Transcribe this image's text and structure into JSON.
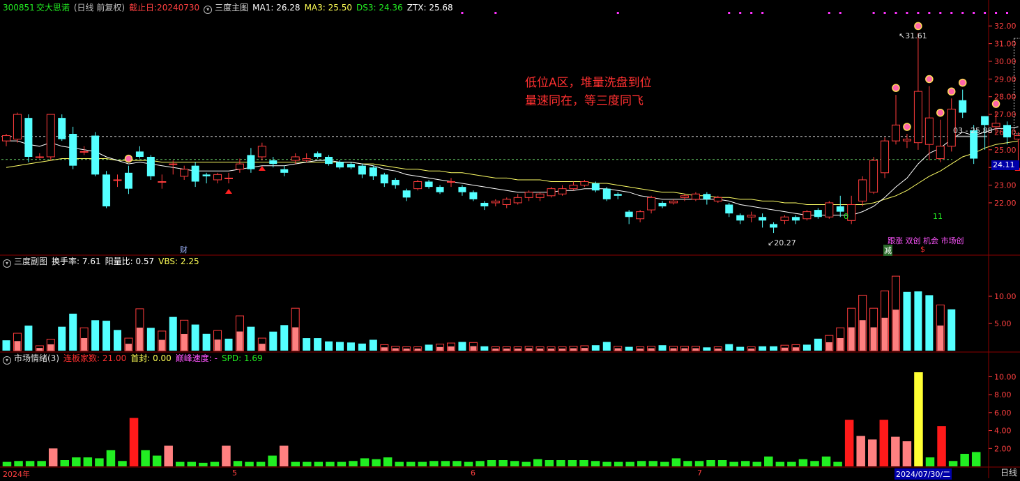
{
  "header": {
    "code": "300851",
    "name": "交大思诺",
    "period": "(日线 前复权)",
    "cutoff": "截止日:20240730",
    "main_title": "三度主图",
    "ma1": "MA1: 26.28",
    "ma3": "MA3: 25.50",
    "ds3": "DS3: 24.36",
    "ztx": "ZTX: 25.68"
  },
  "sub1": {
    "title": "三度副图",
    "turnover": "换手率: 7.61",
    "yang_ratio": "阳量比: 0.57",
    "vbs": "VBS: 2.25"
  },
  "sub2": {
    "title": "市场情绪(3)",
    "limit_count": "连板家数: 21.00",
    "first_seal": "首封: 0.00",
    "peak_speed": "巅峰速度: -",
    "spd": "SPD: 1.69"
  },
  "annotation": {
    "line1": "低位A区，堆量洗盘到位",
    "line2": "量速同在，等三度同飞"
  },
  "labels": {
    "high_marker": "31.61",
    "low_marker": "20.27",
    "last_price_tag": "24.11",
    "right_marker": "03 - 25.88",
    "cai": "财",
    "zero": "0",
    "eleven": "11",
    "tags": "跟涨 双创 机会 市场创",
    "jian": "减",
    "dollar": "$",
    "period_name": "日线"
  },
  "x_axis": {
    "labels": [
      "2024年",
      "5",
      "6",
      "7"
    ],
    "current": "2024/07/30/二"
  },
  "colors": {
    "up": "#ff3c3c",
    "down": "#54ffff",
    "ma1": "#ffffff",
    "ma3": "#ffff66",
    "grid": "#8b0000",
    "sentiment_green": "#22ee22",
    "sentiment_red": "#ff1a1a",
    "sentiment_pink": "#ff8080",
    "sentiment_yellow": "#ffff33"
  },
  "chart_data": [
    {
      "type": "candlestick",
      "title": "三度主图",
      "ylim": [
        19.2,
        32.6
      ],
      "y_ticks": [
        22.0,
        23.0,
        24.0,
        25.0,
        26.0,
        27.0,
        28.0,
        29.0,
        30.0,
        31.0,
        32.0
      ],
      "open": [
        25.5,
        25.6,
        26.8,
        24.6,
        24.6,
        26.8,
        25.9,
        24.9,
        25.8,
        23.6,
        23.3,
        23.7,
        24.9,
        24.6,
        23.2,
        24.2,
        23.5,
        24.1,
        23.6,
        23.3,
        23.4,
        23.9,
        24.7,
        24.6,
        24.4,
        23.9,
        24.4,
        24.4,
        24.8,
        24.6,
        24.3,
        24.2,
        24.1,
        24.0,
        23.6,
        23.3,
        22.7,
        22.8,
        23.2,
        22.9,
        23.2,
        22.9,
        22.6,
        22.0,
        22.0,
        21.9,
        22.0,
        22.3,
        22.3,
        22.4,
        22.5,
        22.8,
        23.0,
        23.1,
        22.8,
        22.5,
        21.5,
        21.1,
        21.6,
        22.0,
        22.0,
        22.3,
        22.2,
        22.5,
        22.1,
        21.9,
        21.3,
        21.2,
        21.2,
        20.8,
        21.0,
        21.2,
        21.1,
        21.6,
        21.2,
        21.8,
        21.0,
        22.1,
        22.6,
        23.7,
        25.5,
        25.5,
        25.4,
        25.3,
        24.5,
        25.2,
        27.8,
        26.1,
        26.9,
        26.3,
        26.4,
        25.6
      ],
      "close": [
        25.8,
        27.0,
        24.6,
        24.6,
        27.0,
        25.6,
        24.1,
        24.9,
        23.6,
        21.8,
        23.3,
        22.8,
        24.6,
        23.5,
        23.2,
        24.2,
        23.9,
        23.2,
        23.5,
        23.6,
        23.4,
        24.2,
        23.9,
        25.2,
        24.2,
        23.7,
        24.6,
        24.5,
        24.6,
        24.2,
        24.0,
        24.0,
        23.6,
        23.5,
        23.1,
        23.0,
        22.3,
        23.2,
        22.9,
        22.6,
        23.2,
        22.6,
        22.2,
        21.8,
        22.1,
        22.2,
        22.3,
        22.6,
        22.5,
        22.8,
        22.8,
        23.0,
        23.2,
        22.7,
        22.2,
        22.4,
        21.2,
        21.5,
        22.3,
        21.8,
        22.1,
        22.4,
        22.5,
        22.2,
        22.3,
        21.4,
        21.0,
        21.3,
        21.0,
        20.6,
        21.2,
        21.0,
        21.5,
        21.2,
        22.0,
        21.5,
        21.9,
        23.3,
        24.4,
        25.5,
        26.4,
        25.6,
        28.3,
        26.8,
        25.2,
        27.3,
        27.1,
        24.5,
        26.4,
        26.5,
        25.7,
        25.8
      ],
      "high": [
        25.9,
        27.1,
        27.0,
        24.8,
        27.0,
        27.0,
        26.3,
        25.2,
        26.0,
        23.8,
        23.6,
        24.1,
        25.2,
        24.7,
        23.6,
        24.4,
        24.1,
        24.3,
        23.7,
        23.7,
        23.7,
        24.5,
        25.1,
        25.4,
        24.6,
        24.1,
        24.8,
        24.8,
        24.9,
        24.7,
        24.4,
        24.3,
        24.2,
        24.1,
        23.7,
        23.4,
        22.8,
        23.3,
        23.3,
        23.0,
        23.4,
        23.0,
        22.7,
        22.1,
        22.2,
        22.3,
        22.5,
        22.7,
        22.6,
        22.9,
        23.0,
        23.2,
        23.3,
        23.2,
        22.9,
        22.6,
        21.6,
        21.6,
        22.4,
        22.1,
        22.2,
        22.5,
        22.6,
        22.6,
        22.4,
        22.0,
        21.4,
        21.5,
        21.4,
        20.9,
        21.3,
        21.3,
        21.6,
        21.7,
        22.1,
        22.4,
        22.4,
        23.5,
        24.6,
        25.7,
        28.1,
        25.9,
        31.6,
        28.6,
        26.7,
        27.9,
        28.4,
        26.4,
        26.9,
        27.2,
        26.6,
        26.0
      ],
      "low": [
        25.2,
        25.4,
        24.3,
        24.5,
        24.4,
        25.5,
        23.9,
        24.7,
        23.5,
        21.7,
        22.9,
        22.5,
        24.5,
        23.3,
        22.8,
        23.6,
        23.3,
        22.9,
        23.1,
        23.1,
        23.1,
        23.7,
        23.7,
        24.4,
        24.0,
        23.5,
        24.2,
        24.3,
        24.5,
        24.1,
        23.9,
        23.9,
        23.4,
        23.3,
        22.9,
        22.8,
        22.1,
        22.7,
        22.8,
        22.5,
        22.9,
        22.4,
        22.1,
        21.6,
        21.8,
        21.7,
        21.9,
        22.1,
        22.1,
        22.3,
        22.4,
        22.7,
        22.9,
        22.6,
        22.1,
        22.2,
        20.8,
        20.9,
        21.4,
        21.7,
        21.9,
        22.1,
        22.1,
        21.9,
        22.0,
        21.2,
        20.8,
        20.9,
        20.6,
        20.3,
        20.8,
        20.8,
        21.0,
        21.1,
        21.1,
        21.2,
        20.8,
        21.8,
        22.5,
        23.4,
        25.3,
        25.1,
        25.0,
        24.4,
        24.3,
        24.9,
        26.8,
        24.2,
        25.0,
        25.9,
        25.3,
        24.4
      ],
      "ma1": [
        25.5,
        25.5,
        25.3,
        25.2,
        25.4,
        25.2,
        25.1,
        25.0,
        24.9,
        24.6,
        24.4,
        24.2,
        24.3,
        24.2,
        24.1,
        24.0,
        23.9,
        23.8,
        23.8,
        23.8,
        23.8,
        23.9,
        24.0,
        24.1,
        24.1,
        24.1,
        24.2,
        24.3,
        24.4,
        24.4,
        24.3,
        24.3,
        24.2,
        24.1,
        23.9,
        23.8,
        23.6,
        23.5,
        23.4,
        23.3,
        23.2,
        23.1,
        23.0,
        22.9,
        22.8,
        22.7,
        22.6,
        22.6,
        22.6,
        22.6,
        22.7,
        22.7,
        22.8,
        22.8,
        22.8,
        22.7,
        22.6,
        22.4,
        22.3,
        22.2,
        22.2,
        22.2,
        22.2,
        22.2,
        22.2,
        22.1,
        21.9,
        21.8,
        21.7,
        21.6,
        21.5,
        21.4,
        21.3,
        21.3,
        21.3,
        21.3,
        21.3,
        21.5,
        21.8,
        22.3,
        22.9,
        23.4,
        24.2,
        24.8,
        25.1,
        25.6,
        26.0,
        25.8,
        26.0,
        26.2,
        26.2,
        26.3
      ],
      "ma3": [
        24.0,
        24.1,
        24.2,
        24.3,
        24.4,
        24.5,
        24.5,
        24.5,
        24.5,
        24.5,
        24.4,
        24.4,
        24.4,
        24.4,
        24.3,
        24.3,
        24.3,
        24.3,
        24.3,
        24.3,
        24.3,
        24.3,
        24.3,
        24.3,
        24.3,
        24.3,
        24.3,
        24.3,
        24.3,
        24.3,
        24.3,
        24.3,
        24.2,
        24.2,
        24.1,
        24.0,
        23.9,
        23.9,
        23.8,
        23.8,
        23.7,
        23.7,
        23.6,
        23.5,
        23.4,
        23.4,
        23.3,
        23.3,
        23.3,
        23.2,
        23.2,
        23.2,
        23.2,
        23.1,
        23.1,
        23.0,
        22.9,
        22.8,
        22.7,
        22.6,
        22.6,
        22.5,
        22.4,
        22.4,
        22.3,
        22.3,
        22.2,
        22.2,
        22.1,
        22.1,
        22.0,
        22.0,
        21.9,
        21.9,
        21.9,
        21.9,
        21.9,
        21.9,
        22.0,
        22.2,
        22.4,
        22.7,
        23.1,
        23.5,
        23.8,
        24.2,
        24.6,
        24.8,
        25.1,
        25.3,
        25.4,
        25.5
      ],
      "ref_lines": [
        25.75,
        24.45
      ],
      "flower_markers_index": [
        11,
        80,
        81,
        82,
        83,
        84,
        85,
        86,
        89
      ],
      "triangle_markers_index": [
        20,
        23,
        91
      ]
    },
    {
      "type": "bar",
      "title": "三度副图",
      "ylim": [
        0,
        15
      ],
      "y_ticks": [
        5.0,
        10.0
      ],
      "values": [
        1.9,
        3.2,
        4.6,
        0.9,
        2.1,
        4.4,
        6.8,
        4.2,
        5.6,
        5.5,
        3.8,
        2.3,
        7.7,
        4.2,
        3.6,
        6.2,
        5.6,
        4.8,
        3.1,
        3.7,
        2.2,
        6.4,
        4.4,
        2.3,
        3.5,
        4.7,
        7.8,
        2.3,
        2.3,
        1.7,
        1.6,
        1.5,
        1.3,
        2.0,
        1.1,
        0.8,
        0.7,
        0.7,
        1.1,
        1.2,
        1.4,
        1.6,
        1.5,
        0.8,
        0.7,
        0.7,
        0.7,
        0.8,
        0.7,
        0.7,
        0.7,
        0.8,
        0.9,
        1.0,
        1.6,
        0.8,
        0.7,
        0.7,
        0.8,
        1.0,
        0.8,
        0.8,
        0.8,
        0.6,
        0.7,
        1.2,
        0.7,
        0.7,
        0.8,
        0.8,
        1.0,
        1.1,
        1.1,
        2.2,
        2.8,
        4.2,
        7.8,
        10.2,
        7.8,
        11.0,
        13.7,
        10.8,
        10.9,
        10.2,
        8.4,
        7.6
      ],
      "is_up": [
        false,
        true,
        false,
        true,
        true,
        false,
        false,
        true,
        false,
        false,
        false,
        true,
        true,
        false,
        true,
        false,
        true,
        false,
        false,
        true,
        false,
        true,
        false,
        true,
        false,
        false,
        true,
        false,
        false,
        false,
        false,
        false,
        false,
        false,
        true,
        true,
        true,
        true,
        false,
        true,
        true,
        false,
        true,
        false,
        true,
        true,
        true,
        true,
        true,
        true,
        true,
        true,
        true,
        false,
        false,
        true,
        false,
        true,
        true,
        false,
        true,
        true,
        true,
        false,
        true,
        false,
        false,
        true,
        false,
        false,
        true,
        true,
        false,
        false,
        true,
        true,
        true,
        true,
        true,
        true,
        true,
        false,
        false,
        false,
        true,
        false
      ]
    },
    {
      "type": "bar",
      "title": "市场情绪(3)",
      "ylim": [
        0,
        11.2
      ],
      "y_ticks": [
        2.0,
        4.0,
        6.0,
        8.0,
        10.0
      ],
      "values": [
        0.5,
        0.6,
        0.6,
        0.6,
        2.0,
        0.7,
        1.0,
        1.0,
        0.9,
        1.8,
        0.6,
        5.4,
        1.8,
        1.2,
        2.3,
        0.5,
        0.5,
        0.4,
        0.5,
        2.3,
        0.6,
        0.5,
        0.5,
        1.2,
        2.3,
        0.5,
        0.5,
        0.5,
        0.5,
        0.5,
        0.6,
        0.9,
        0.8,
        1.0,
        0.5,
        0.5,
        0.5,
        0.6,
        0.6,
        0.6,
        0.5,
        0.6,
        0.7,
        0.7,
        0.6,
        0.5,
        0.8,
        0.7,
        0.7,
        0.7,
        0.7,
        0.6,
        0.5,
        0.5,
        0.5,
        0.6,
        0.6,
        0.5,
        0.9,
        0.6,
        0.6,
        0.7,
        0.7,
        0.5,
        0.6,
        0.5,
        1.1,
        0.5,
        0.5,
        0.8,
        0.6,
        1.1,
        0.5,
        5.2,
        3.4,
        3.0,
        5.2,
        3.3,
        2.8,
        10.5,
        1.0,
        4.5,
        0.6,
        1.4,
        1.6
      ],
      "colors": [
        "g",
        "g",
        "g",
        "g",
        "p",
        "g",
        "g",
        "g",
        "g",
        "g",
        "g",
        "r",
        "g",
        "g",
        "p",
        "g",
        "g",
        "g",
        "g",
        "p",
        "g",
        "g",
        "g",
        "g",
        "p",
        "g",
        "g",
        "g",
        "g",
        "g",
        "g",
        "g",
        "g",
        "g",
        "g",
        "g",
        "g",
        "g",
        "g",
        "g",
        "g",
        "g",
        "g",
        "g",
        "g",
        "g",
        "g",
        "g",
        "g",
        "g",
        "g",
        "g",
        "g",
        "g",
        "g",
        "g",
        "g",
        "g",
        "g",
        "g",
        "g",
        "g",
        "g",
        "g",
        "g",
        "g",
        "g",
        "g",
        "g",
        "g",
        "g",
        "g",
        "g",
        "r",
        "p",
        "p",
        "r",
        "p",
        "p",
        "y",
        "g",
        "r",
        "g",
        "g",
        "g"
      ]
    }
  ]
}
